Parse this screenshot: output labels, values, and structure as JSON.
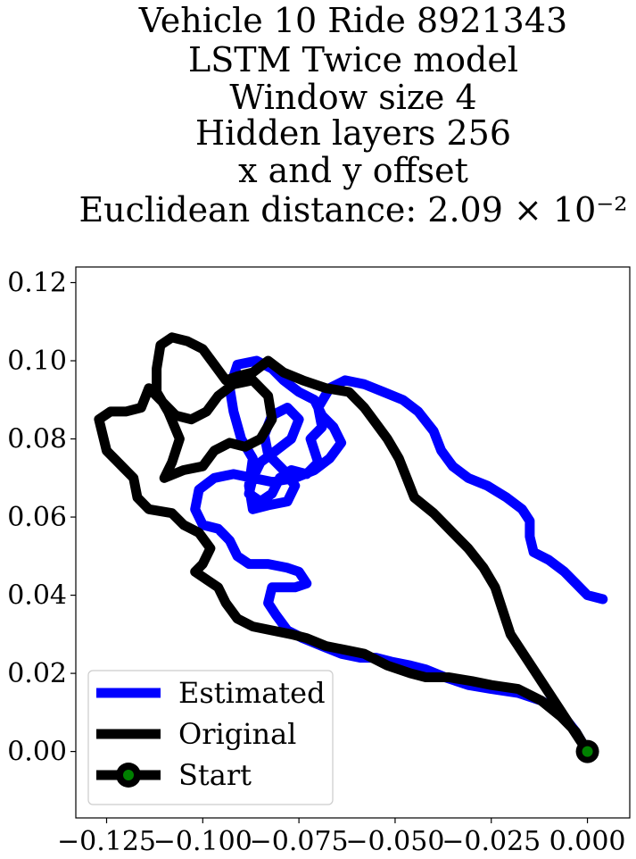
{
  "chart_data": {
    "type": "line",
    "title_lines": [
      "Vehicle 10 Ride 8921343",
      "LSTM Twice model",
      "Window size 4",
      "Hidden layers 256",
      "x and y offset",
      "Euclidean distance: 2.09 × 10⁻²"
    ],
    "xlabel": "",
    "ylabel": "",
    "xlim": [
      -0.133,
      0.011
    ],
    "ylim": [
      -0.017,
      0.124
    ],
    "xticks": [
      -0.125,
      -0.1,
      -0.075,
      -0.05,
      -0.025,
      0.0
    ],
    "xtick_labels": [
      "−0.125",
      "−0.100",
      "−0.075",
      "−0.050",
      "−0.025",
      "0.000"
    ],
    "yticks": [
      0.0,
      0.02,
      0.04,
      0.06,
      0.08,
      0.1,
      0.12
    ],
    "ytick_labels": [
      "0.00",
      "0.02",
      "0.04",
      "0.06",
      "0.08",
      "0.10",
      "0.12"
    ],
    "grid": false,
    "legend_position": "lower-left",
    "series": [
      {
        "name": "Estimated",
        "color": "#0000ff",
        "points": [
          [
            0.004,
            0.039
          ],
          [
            0.0,
            0.04
          ],
          [
            -0.003,
            0.043
          ],
          [
            -0.006,
            0.046
          ],
          [
            -0.01,
            0.049
          ],
          [
            -0.014,
            0.051
          ],
          [
            -0.015,
            0.055
          ],
          [
            -0.015,
            0.059
          ],
          [
            -0.017,
            0.062
          ],
          [
            -0.021,
            0.065
          ],
          [
            -0.026,
            0.068
          ],
          [
            -0.031,
            0.07
          ],
          [
            -0.035,
            0.073
          ],
          [
            -0.038,
            0.077
          ],
          [
            -0.04,
            0.082
          ],
          [
            -0.044,
            0.087
          ],
          [
            -0.048,
            0.09
          ],
          [
            -0.053,
            0.092
          ],
          [
            -0.058,
            0.094
          ],
          [
            -0.063,
            0.095
          ],
          [
            -0.067,
            0.093
          ],
          [
            -0.07,
            0.088
          ],
          [
            -0.069,
            0.083
          ],
          [
            -0.072,
            0.08
          ],
          [
            -0.07,
            0.074
          ],
          [
            -0.073,
            0.071
          ],
          [
            -0.077,
            0.072
          ],
          [
            -0.08,
            0.07
          ],
          [
            -0.082,
            0.066
          ],
          [
            -0.085,
            0.064
          ],
          [
            -0.088,
            0.066
          ],
          [
            -0.087,
            0.07
          ],
          [
            -0.085,
            0.074
          ],
          [
            -0.081,
            0.077
          ],
          [
            -0.077,
            0.08
          ],
          [
            -0.075,
            0.085
          ],
          [
            -0.078,
            0.088
          ],
          [
            -0.082,
            0.086
          ],
          [
            -0.084,
            0.081
          ],
          [
            -0.083,
            0.076
          ],
          [
            -0.079,
            0.072
          ],
          [
            -0.076,
            0.068
          ],
          [
            -0.078,
            0.064
          ],
          [
            -0.083,
            0.063
          ],
          [
            -0.087,
            0.062
          ],
          [
            -0.088,
            0.068
          ],
          [
            -0.087,
            0.075
          ],
          [
            -0.09,
            0.08
          ],
          [
            -0.092,
            0.087
          ],
          [
            -0.093,
            0.093
          ],
          [
            -0.091,
            0.099
          ],
          [
            -0.086,
            0.1
          ],
          [
            -0.082,
            0.098
          ],
          [
            -0.079,
            0.095
          ],
          [
            -0.075,
            0.092
          ],
          [
            -0.071,
            0.09
          ],
          [
            -0.069,
            0.086
          ],
          [
            -0.066,
            0.083
          ],
          [
            -0.064,
            0.079
          ],
          [
            -0.067,
            0.075
          ],
          [
            -0.071,
            0.072
          ],
          [
            -0.076,
            0.07
          ],
          [
            -0.082,
            0.069
          ],
          [
            -0.087,
            0.07
          ],
          [
            -0.092,
            0.071
          ],
          [
            -0.097,
            0.07
          ],
          [
            -0.101,
            0.067
          ],
          [
            -0.102,
            0.062
          ],
          [
            -0.1,
            0.058
          ],
          [
            -0.096,
            0.057
          ],
          [
            -0.093,
            0.054
          ],
          [
            -0.091,
            0.05
          ],
          [
            -0.088,
            0.048
          ],
          [
            -0.083,
            0.048
          ],
          [
            -0.078,
            0.047
          ],
          [
            -0.075,
            0.046
          ],
          [
            -0.073,
            0.043
          ],
          [
            -0.076,
            0.042
          ],
          [
            -0.082,
            0.042
          ],
          [
            -0.083,
            0.038
          ],
          [
            -0.081,
            0.035
          ],
          [
            -0.078,
            0.031
          ],
          [
            -0.074,
            0.029
          ],
          [
            -0.069,
            0.027
          ],
          [
            -0.064,
            0.025
          ],
          [
            -0.059,
            0.024
          ],
          [
            -0.055,
            0.024
          ],
          [
            -0.051,
            0.023
          ],
          [
            -0.046,
            0.022
          ],
          [
            -0.042,
            0.021
          ],
          [
            -0.037,
            0.019
          ],
          [
            -0.031,
            0.017
          ],
          [
            -0.025,
            0.016
          ],
          [
            -0.018,
            0.015
          ],
          [
            -0.012,
            0.013
          ],
          [
            -0.007,
            0.01
          ],
          [
            -0.003,
            0.005
          ],
          [
            0.0,
            0.0
          ]
        ]
      },
      {
        "name": "Original",
        "color": "#000000",
        "points": [
          [
            0.0,
            0.0
          ],
          [
            -0.004,
            0.006
          ],
          [
            -0.008,
            0.012
          ],
          [
            -0.012,
            0.018
          ],
          [
            -0.016,
            0.024
          ],
          [
            -0.02,
            0.03
          ],
          [
            -0.022,
            0.036
          ],
          [
            -0.024,
            0.042
          ],
          [
            -0.027,
            0.047
          ],
          [
            -0.031,
            0.052
          ],
          [
            -0.035,
            0.056
          ],
          [
            -0.04,
            0.061
          ],
          [
            -0.045,
            0.065
          ],
          [
            -0.047,
            0.07
          ],
          [
            -0.049,
            0.075
          ],
          [
            -0.052,
            0.08
          ],
          [
            -0.055,
            0.084
          ],
          [
            -0.058,
            0.088
          ],
          [
            -0.062,
            0.092
          ],
          [
            -0.068,
            0.093
          ],
          [
            -0.074,
            0.095
          ],
          [
            -0.079,
            0.097
          ],
          [
            -0.083,
            0.1
          ],
          [
            -0.087,
            0.097
          ],
          [
            -0.091,
            0.096
          ],
          [
            -0.094,
            0.095
          ],
          [
            -0.097,
            0.099
          ],
          [
            -0.1,
            0.103
          ],
          [
            -0.104,
            0.105
          ],
          [
            -0.108,
            0.106
          ],
          [
            -0.111,
            0.104
          ],
          [
            -0.112,
            0.098
          ],
          [
            -0.112,
            0.092
          ],
          [
            -0.109,
            0.087
          ],
          [
            -0.106,
            0.08
          ],
          [
            -0.108,
            0.074
          ],
          [
            -0.11,
            0.07
          ],
          [
            -0.105,
            0.072
          ],
          [
            -0.1,
            0.073
          ],
          [
            -0.097,
            0.077
          ],
          [
            -0.093,
            0.079
          ],
          [
            -0.089,
            0.078
          ],
          [
            -0.085,
            0.08
          ],
          [
            -0.082,
            0.085
          ],
          [
            -0.083,
            0.091
          ],
          [
            -0.087,
            0.095
          ],
          [
            -0.092,
            0.094
          ],
          [
            -0.096,
            0.091
          ],
          [
            -0.099,
            0.087
          ],
          [
            -0.103,
            0.085
          ],
          [
            -0.107,
            0.086
          ],
          [
            -0.11,
            0.089
          ],
          [
            -0.114,
            0.093
          ],
          [
            -0.116,
            0.088
          ],
          [
            -0.12,
            0.087
          ],
          [
            -0.124,
            0.087
          ],
          [
            -0.127,
            0.085
          ],
          [
            -0.126,
            0.081
          ],
          [
            -0.125,
            0.077
          ],
          [
            -0.121,
            0.073
          ],
          [
            -0.118,
            0.07
          ],
          [
            -0.117,
            0.065
          ],
          [
            -0.114,
            0.062
          ],
          [
            -0.108,
            0.061
          ],
          [
            -0.105,
            0.058
          ],
          [
            -0.101,
            0.056
          ],
          [
            -0.098,
            0.052
          ],
          [
            -0.1,
            0.048
          ],
          [
            -0.102,
            0.046
          ],
          [
            -0.099,
            0.044
          ],
          [
            -0.096,
            0.042
          ],
          [
            -0.094,
            0.038
          ],
          [
            -0.091,
            0.034
          ],
          [
            -0.087,
            0.032
          ],
          [
            -0.082,
            0.031
          ],
          [
            -0.077,
            0.03
          ],
          [
            -0.073,
            0.029
          ],
          [
            -0.068,
            0.027
          ],
          [
            -0.063,
            0.026
          ],
          [
            -0.058,
            0.025
          ],
          [
            -0.052,
            0.022
          ],
          [
            -0.046,
            0.02
          ],
          [
            -0.042,
            0.019
          ],
          [
            -0.036,
            0.019
          ],
          [
            -0.03,
            0.018
          ],
          [
            -0.025,
            0.017
          ],
          [
            -0.018,
            0.016
          ],
          [
            -0.012,
            0.013
          ],
          [
            -0.007,
            0.009
          ],
          [
            -0.003,
            0.005
          ],
          [
            0.0,
            0.0
          ]
        ]
      }
    ],
    "start_marker": {
      "name": "Start",
      "x": 0.0,
      "y": 0.0,
      "edge_color": "#000000",
      "face_color": "#008000"
    }
  }
}
